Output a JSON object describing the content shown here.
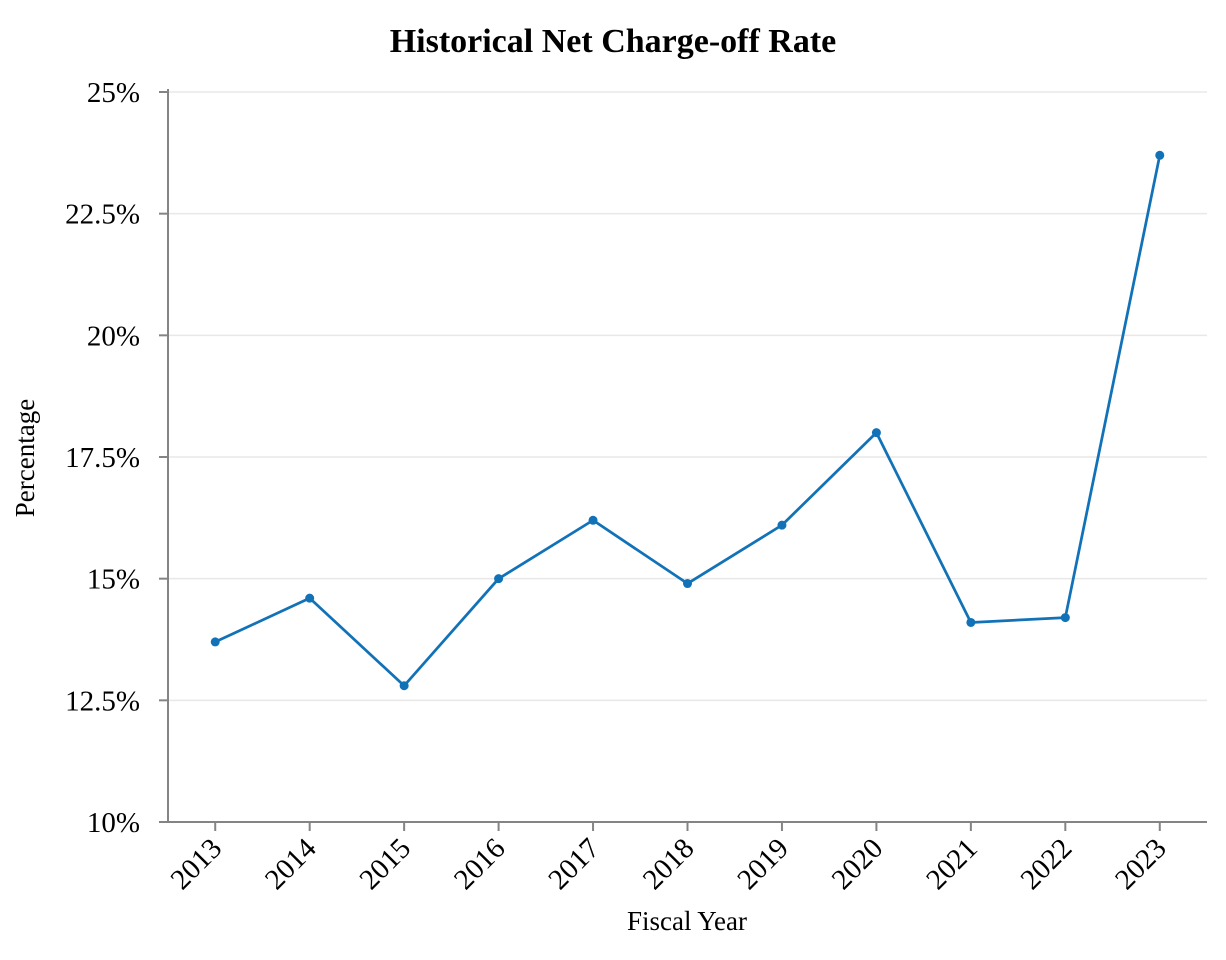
{
  "chart_data": {
    "type": "line",
    "title": "Historical Net Charge-off Rate",
    "xlabel": "Fiscal Year",
    "ylabel": "Percentage",
    "categories": [
      "2013",
      "2014",
      "2015",
      "2016",
      "2017",
      "2018",
      "2019",
      "2020",
      "2021",
      "2022",
      "2023"
    ],
    "values": [
      13.7,
      14.6,
      12.8,
      15.0,
      16.2,
      14.9,
      16.1,
      18.0,
      14.1,
      14.2,
      23.7
    ],
    "ylim": [
      10,
      25
    ],
    "yticks": [
      10,
      12.5,
      15,
      17.5,
      20,
      22.5,
      25
    ],
    "ytick_labels": [
      "10%",
      "12.5%",
      "15%",
      "17.5%",
      "20%",
      "22.5%",
      "25%"
    ],
    "grid": "horizontal-only",
    "legend": "none",
    "colors": {
      "line": "#1272b8",
      "marker": "#1272b8",
      "gridline": "#e8e8e8",
      "axis": "#848484",
      "text": "#000000",
      "background": "#ffffff"
    }
  }
}
